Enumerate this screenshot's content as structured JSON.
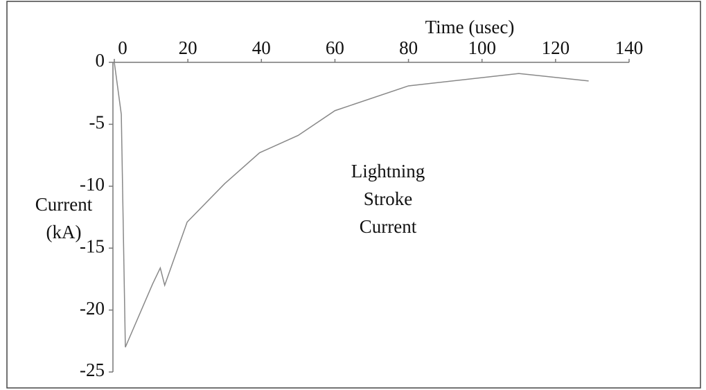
{
  "chart_data": {
    "type": "line",
    "xlabel": "Time (usec)",
    "ylabel": [
      "Current",
      "(kA)"
    ],
    "annotation": [
      "Lightning",
      "Stroke",
      "Current"
    ],
    "x": [
      0,
      1.9,
      3,
      10.4,
      12.5,
      13.7,
      19.8,
      30,
      39.5,
      50,
      60,
      80,
      110,
      129
    ],
    "series": [
      {
        "name": "Lightning Stroke Current",
        "color": "#888888",
        "values": [
          0,
          -4.2,
          -23,
          -17.9,
          -16.6,
          -18,
          -12.9,
          -9.8,
          -7.3,
          -5.9,
          -3.9,
          -1.9,
          -0.9,
          -1.5
        ]
      }
    ],
    "xlim": [
      0,
      140
    ],
    "xticks": [
      0,
      20,
      40,
      60,
      80,
      100,
      120,
      140
    ],
    "ylim": [
      -25,
      0
    ],
    "yticks": [
      0,
      -5,
      -10,
      -15,
      -20,
      -25
    ]
  }
}
